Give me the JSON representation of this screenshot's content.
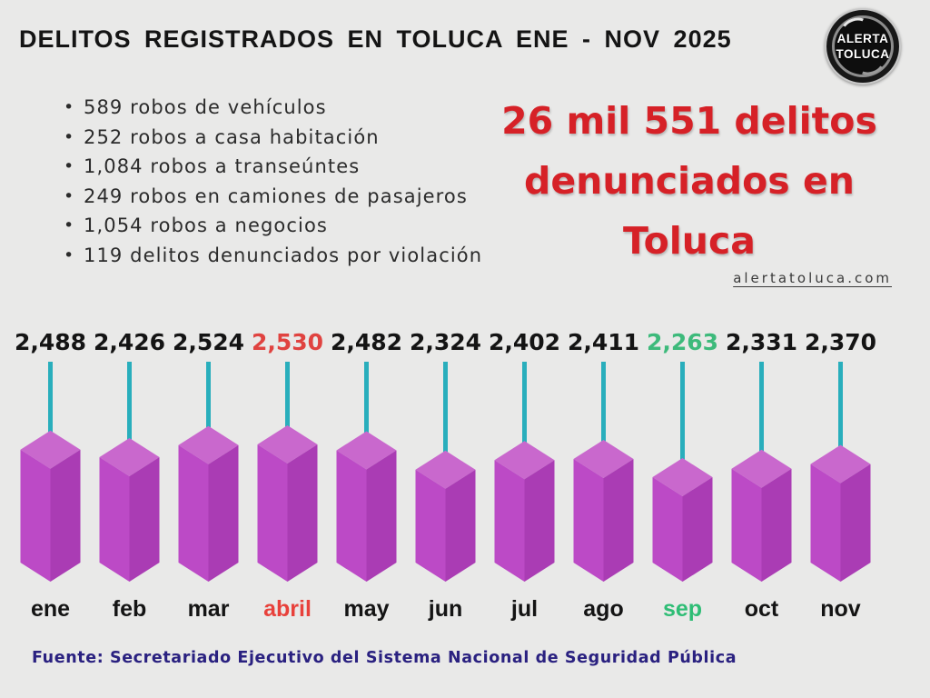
{
  "header": {
    "title": "DELITOS REGISTRADOS EN TOLUCA ENE - NOV 2025"
  },
  "logo": {
    "line1": "ALERTA",
    "line2": "TOLUCA"
  },
  "bullets": [
    "589 robos de vehículos",
    "252 robos a casa habitación",
    "1,084 robos a transeúntes",
    "249 robos en camiones de pasajeros",
    "1,054 robos a negocios",
    "119 delitos denunciados por violación"
  ],
  "headline": {
    "lines": [
      "26 mil 551 delitos",
      "denunciados en",
      "Toluca"
    ],
    "color": "#d62127"
  },
  "website": "alertatoluca.com",
  "footer": "Fuente: Secretariado Ejecutivo del Sistema Nacional de Seguridad Pública",
  "chart_data": {
    "type": "bar",
    "title": "Delitos registrados en Toluca ene - nov 2025 (26 mil 551 en total)",
    "categories": [
      "ene",
      "feb",
      "mar",
      "abril",
      "may",
      "jun",
      "jul",
      "ago",
      "sep",
      "oct",
      "nov"
    ],
    "values": [
      2488,
      2426,
      2524,
      2530,
      2482,
      2324,
      2402,
      2411,
      2263,
      2331,
      2370
    ],
    "point_colors": [
      "black",
      "black",
      "black",
      "red",
      "black",
      "black",
      "black",
      "black",
      "green",
      "black",
      "black"
    ],
    "total": 26551,
    "xlabel": "",
    "ylabel": "",
    "value_range": [
      2263,
      2530
    ],
    "grid": false,
    "legend": false,
    "colors": {
      "bar_top": "#c968cd",
      "bar_left": "#bc4ac6",
      "bar_right": "#aa3cb4",
      "stem_line": "#29aebc",
      "highlight_max": "#e04340",
      "highlight_min": "#3dba7b",
      "default_text": "#141414"
    }
  }
}
